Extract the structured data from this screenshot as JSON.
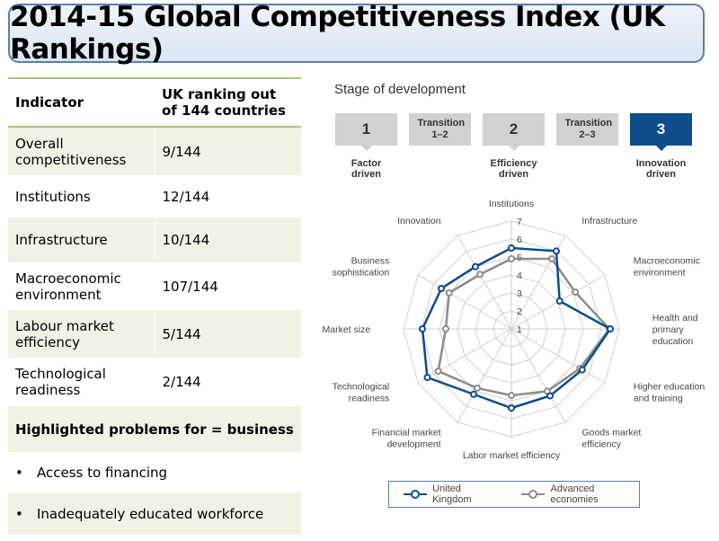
{
  "title": "2014-15 Global Competitiveness Index (UK Rankings)",
  "table": {
    "headers": [
      "Indicator",
      "UK ranking out of 144 countries"
    ],
    "rows": [
      {
        "indicator": "Overall competitiveness",
        "ranking": "9/144"
      },
      {
        "indicator": "Institutions",
        "ranking": "12/144"
      },
      {
        "indicator": "Infrastructure",
        "ranking": "10/144"
      },
      {
        "indicator": "Macroeconomic environment",
        "ranking": "107/144"
      },
      {
        "indicator": "Labour market efficiency",
        "ranking": "5/144"
      },
      {
        "indicator": "Technological readiness",
        "ranking": "2/144"
      }
    ],
    "problems_heading": "Highlighted problems for = business",
    "problems": [
      "Access to financing",
      "Inadequately educated workforce"
    ]
  },
  "stages": {
    "title": "Stage of development",
    "boxes": [
      {
        "label": "1",
        "caption": "Factor driven"
      },
      {
        "label": "Transition 1–2",
        "caption": ""
      },
      {
        "label": "2",
        "caption": "Efficiency driven"
      },
      {
        "label": "Transition 2–3",
        "caption": ""
      },
      {
        "label": "3",
        "caption": "Innovation driven",
        "active": true
      }
    ]
  },
  "chart_data": {
    "type": "radar",
    "axes": [
      "Institutions",
      "Infrastructure",
      "Macroeconomic environment",
      "Health and primary education",
      "Higher education and training",
      "Goods market efficiency",
      "Labor market efficiency",
      "Financial market development",
      "Technological readiness",
      "Market size",
      "Business sophistication",
      "Innovation"
    ],
    "tick_labels": [
      "1",
      "2",
      "3",
      "4",
      "5",
      "6",
      "7"
    ],
    "range": [
      1,
      7
    ],
    "series": [
      {
        "name": "United Kingdom",
        "color": "#0e4c8a",
        "values": [
          5.5,
          6.0,
          4.1,
          6.5,
          5.55,
          5.3,
          5.4,
          5.2,
          6.4,
          5.95,
          5.5,
          5.0
        ]
      },
      {
        "name": "Advanced economies",
        "color": "#8c8c8c",
        "values": [
          4.9,
          5.5,
          5.1,
          6.45,
          5.4,
          5.0,
          4.7,
          4.8,
          5.7,
          4.65,
          5.0,
          4.5
        ]
      }
    ],
    "legend": "bottom"
  }
}
